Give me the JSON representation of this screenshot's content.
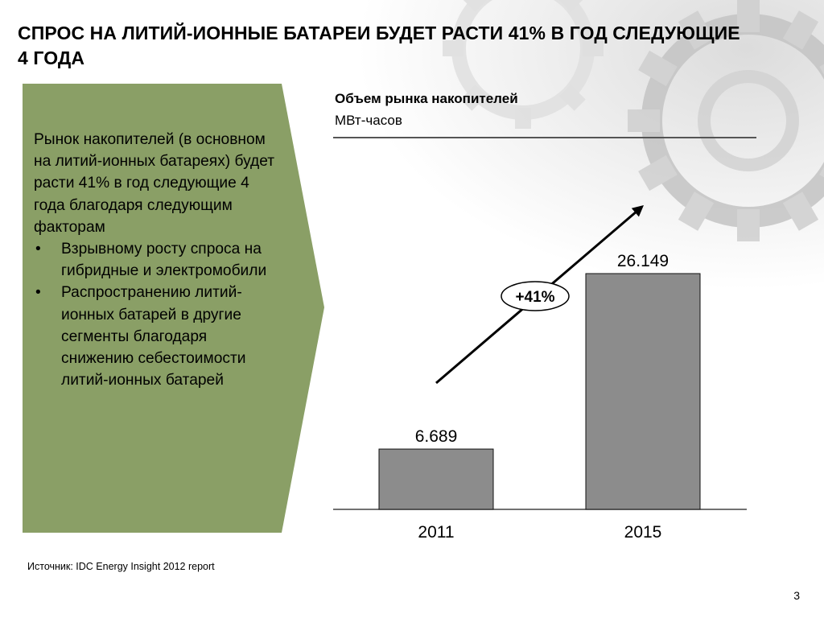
{
  "slide": {
    "title": "СПРОС НА ЛИТИЙ-ИОННЫЕ БАТАРЕИ БУДЕТ РАСТИ 41% В ГОД СЛЕДУЮЩИЕ 4 ГОДА",
    "page_number": "3",
    "source": "Источник: IDC Energy Insight  2012  report"
  },
  "panel": {
    "intro": "Рынок накопителей (в основном на литий-ионных батареях)  будет расти 41% в год следующие 4 года благодаря следующим факторам",
    "bullet_char": "•",
    "bullets": [
      "Взрывному росту спроса на гибридные и электромобили",
      "Распространению литий-ионных батарей в другие сегменты благодаря снижению себестоимости литий-ионных батарей"
    ],
    "color": "#8a9f66"
  },
  "chart_data": {
    "type": "bar",
    "title": "Объем рынка накопителей",
    "ylabel": "МВт-часов",
    "categories": [
      "2011",
      "2015"
    ],
    "values": [
      6.689,
      26.149
    ],
    "value_labels": [
      "6.689",
      "26.149"
    ],
    "growth_label": "+41%",
    "bar_color": "#8c8c8c",
    "ylim": [
      0,
      26.149
    ]
  }
}
